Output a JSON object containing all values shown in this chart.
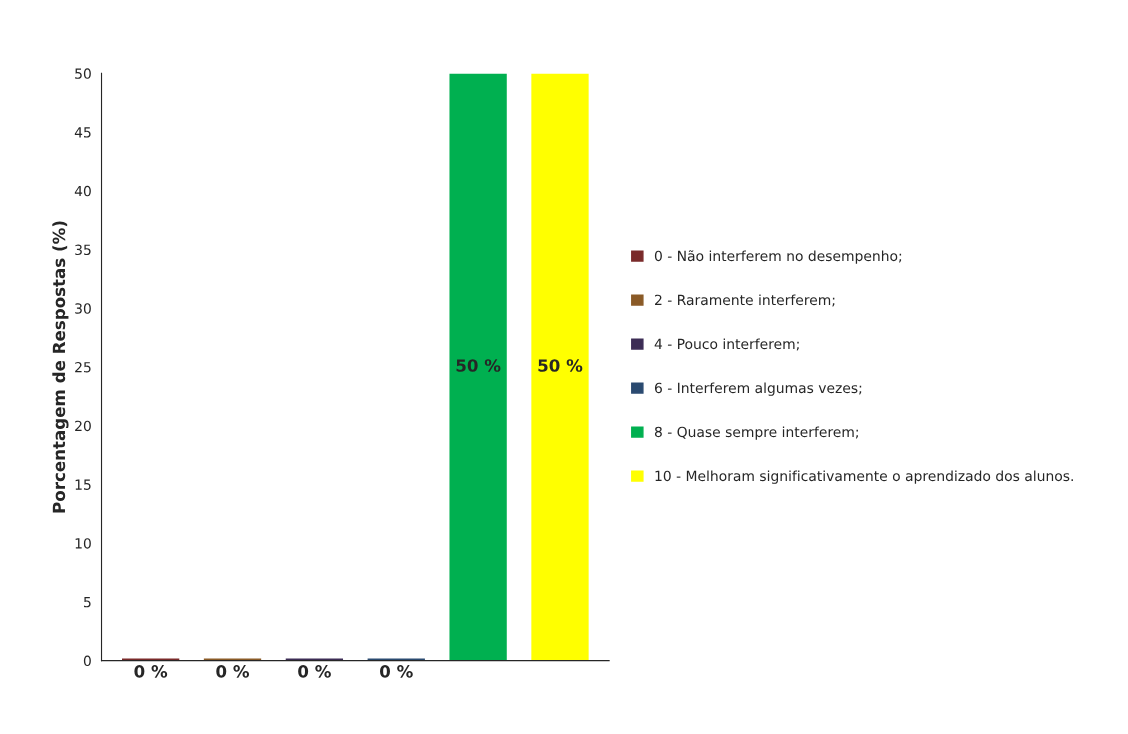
{
  "chart_data": {
    "type": "bar",
    "ylabel": "Porcentagem de Respostas (%)",
    "categories": [
      null,
      null,
      null,
      null,
      null,
      null
    ],
    "series": [
      {
        "name": "0 - Não interferem no desempenho;",
        "color": "#7a2a2a",
        "values": [
          0,
          null,
          null,
          null,
          null,
          null
        ],
        "value_labels": [
          "0 %",
          null,
          null,
          null,
          null,
          null
        ]
      },
      {
        "name": "2 - Raramente interferem;",
        "color": "#8a5a26",
        "values": [
          null,
          0,
          null,
          null,
          null,
          null
        ],
        "value_labels": [
          null,
          "0 %",
          null,
          null,
          null,
          null
        ]
      },
      {
        "name": "4 - Pouco interferem;",
        "color": "#3c2c55",
        "values": [
          null,
          null,
          0,
          null,
          null,
          null
        ],
        "value_labels": [
          null,
          null,
          "0 %",
          null,
          null,
          null
        ]
      },
      {
        "name": "6 - Interferem algumas vezes;",
        "color": "#2a4a70",
        "values": [
          null,
          null,
          null,
          0,
          null,
          null
        ],
        "value_labels": [
          null,
          null,
          null,
          "0 %",
          null,
          null
        ]
      },
      {
        "name": "8 - Quase sempre interferem;",
        "color": "#00b050",
        "values": [
          null,
          null,
          null,
          null,
          50,
          null
        ],
        "value_labels": [
          null,
          null,
          null,
          null,
          "50 %",
          null
        ]
      },
      {
        "name": "10 - Melhoram significativamente o aprendizado dos alunos.",
        "color": "#ffff00",
        "values": [
          null,
          null,
          null,
          null,
          null,
          50
        ],
        "value_labels": [
          null,
          null,
          null,
          null,
          null,
          "50 %"
        ]
      }
    ],
    "ylim": [
      0,
      50
    ],
    "yticks": [
      0,
      5,
      10,
      15,
      20,
      25,
      30,
      35,
      40,
      45,
      50
    ],
    "grid": false,
    "legend": "right"
  }
}
